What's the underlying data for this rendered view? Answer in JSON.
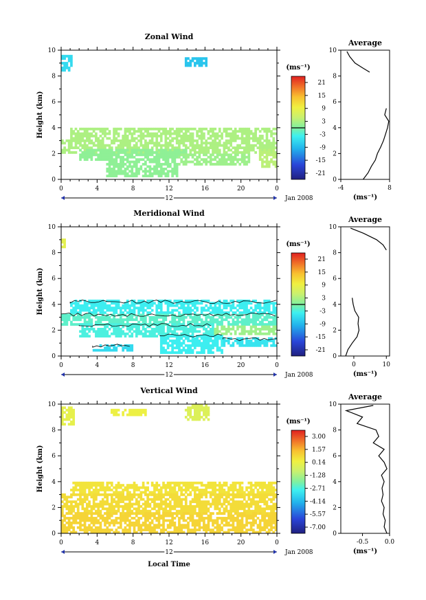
{
  "chart_data": [
    {
      "type": "heatmap",
      "title": "Zonal Wind",
      "ylabel": "Height (km)",
      "ylim": [
        0,
        10
      ],
      "y_ticks": [
        0,
        2,
        4,
        6,
        8,
        10
      ],
      "x_ticks": [
        "0",
        "4",
        "8",
        "12",
        "16",
        "20",
        "0"
      ],
      "date_marker": "12",
      "date_label": "Jan 2008",
      "colorbar": {
        "unit_label": "(ms⁻¹)",
        "ticks": [
          "21",
          "15",
          "9",
          "3",
          "-3",
          "-9",
          "-15",
          "-21"
        ],
        "range": [
          -24,
          24
        ],
        "contour_level": 0
      },
      "regions": [
        {
          "x0": 0.0,
          "x1": 1.2,
          "y0": 8.5,
          "y1": 9.5,
          "value": -6
        },
        {
          "x0": 13.8,
          "x1": 16.2,
          "y0": 8.9,
          "y1": 9.3,
          "value": -8
        },
        {
          "x0": 1.0,
          "x1": 24.0,
          "y0": 3.2,
          "y1": 3.9,
          "value": 3
        },
        {
          "x0": 0.0,
          "x1": 24.0,
          "y0": 2.1,
          "y1": 3.0,
          "value": 3
        },
        {
          "x0": 2.0,
          "x1": 14.0,
          "y0": 1.6,
          "y1": 2.2,
          "value": 1
        },
        {
          "x0": 5.0,
          "x1": 13.0,
          "y0": 0.3,
          "y1": 1.3,
          "value": 1
        },
        {
          "x0": 13.0,
          "x1": 21.0,
          "y0": 1.2,
          "y1": 1.9,
          "value": 2
        },
        {
          "x0": 22.0,
          "x1": 24.0,
          "y0": 1.0,
          "y1": 2.2,
          "value": 4
        }
      ],
      "profile": {
        "title": "Average",
        "xlabel": "(ms⁻¹)",
        "xlim": [
          -4,
          8
        ],
        "x_ticks": [
          -4,
          8
        ],
        "height": [
          0.0,
          0.5,
          1.0,
          1.5,
          2.0,
          2.5,
          3.0,
          3.5,
          4.0,
          4.5,
          5.0,
          5.5,
          8.3,
          8.6,
          9.0,
          9.5,
          9.9
        ],
        "value": [
          1.5,
          2.7,
          3.5,
          4.5,
          5.0,
          5.8,
          6.5,
          7.0,
          7.5,
          7.8,
          6.8,
          7.2,
          3.1,
          1.5,
          -0.5,
          -1.8,
          -2.5
        ]
      }
    },
    {
      "type": "heatmap",
      "title": "Meridional Wind",
      "ylabel": "Height (km)",
      "ylim": [
        0,
        10
      ],
      "y_ticks": [
        0,
        2,
        4,
        6,
        8,
        10
      ],
      "x_ticks": [
        "0",
        "4",
        "8",
        "12",
        "16",
        "20",
        "0"
      ],
      "date_marker": "12",
      "date_label": "Jan 2008",
      "colorbar": {
        "unit_label": "(ms⁻¹)",
        "ticks": [
          "21",
          "15",
          "9",
          "3",
          "-3",
          "-9",
          "-15",
          "-21"
        ],
        "range": [
          -24,
          24
        ],
        "contour_level": 0
      },
      "regions": [
        {
          "x0": 0.0,
          "x1": 0.4,
          "y0": 8.5,
          "y1": 9.4,
          "value": 8
        },
        {
          "x0": 1.0,
          "x1": 24.0,
          "y0": 3.4,
          "y1": 4.2,
          "value": -4
        },
        {
          "x0": 0.0,
          "x1": 24.0,
          "y0": 2.4,
          "y1": 3.2,
          "value": -2
        },
        {
          "x0": 2.0,
          "x1": 17.0,
          "y0": 1.6,
          "y1": 2.4,
          "value": -3
        },
        {
          "x0": 17.0,
          "x1": 24.0,
          "y0": 1.7,
          "y1": 2.3,
          "value": 2
        },
        {
          "x0": 11.0,
          "x1": 18.0,
          "y0": 0.2,
          "y1": 1.6,
          "value": -4
        },
        {
          "x0": 3.5,
          "x1": 8.0,
          "y0": 0.4,
          "y1": 0.8,
          "value": -6
        },
        {
          "x0": 18.0,
          "x1": 24.0,
          "y0": 0.8,
          "y1": 1.3,
          "value": -5
        }
      ],
      "profile": {
        "title": "Average",
        "xlabel": "(ms⁻¹)",
        "xlim": [
          -4,
          11
        ],
        "x_ticks": [
          0,
          10
        ],
        "height": [
          0.0,
          0.5,
          1.0,
          1.5,
          2.0,
          2.5,
          3.0,
          3.5,
          4.0,
          4.5,
          8.2,
          8.6,
          9.0,
          9.5,
          9.9
        ],
        "value": [
          -2.5,
          -1.8,
          -0.5,
          1.0,
          1.6,
          1.3,
          1.5,
          0.3,
          -0.2,
          -0.5,
          10.0,
          9.0,
          7.0,
          3.0,
          -1.0
        ]
      }
    },
    {
      "type": "heatmap",
      "title": "Vertical Wind",
      "ylabel": "Height (km)",
      "xlabel": "Local Time",
      "ylim": [
        0,
        10
      ],
      "y_ticks": [
        0,
        2,
        4,
        6,
        8,
        10
      ],
      "x_ticks": [
        "0",
        "4",
        "8",
        "12",
        "16",
        "20",
        "0"
      ],
      "date_marker": "12",
      "date_label": "Jan 2008",
      "colorbar": {
        "unit_label": "(ms⁻¹)",
        "ticks": [
          "3.00",
          "1.57",
          "0.14",
          "-1.28",
          "-2.71",
          "-4.14",
          "-5.57",
          "-7.00"
        ],
        "range": [
          -8,
          4
        ]
      },
      "regions": [
        {
          "x0": 0.0,
          "x1": 1.5,
          "y0": 8.5,
          "y1": 9.8,
          "value": 0.1
        },
        {
          "x0": 5.5,
          "x1": 9.5,
          "y0": 9.1,
          "y1": 9.6,
          "value": 0.3
        },
        {
          "x0": 13.8,
          "x1": 16.3,
          "y0": 8.8,
          "y1": 9.9,
          "value": -0.2
        },
        {
          "x0": 1.0,
          "x1": 24.0,
          "y0": 3.0,
          "y1": 4.0,
          "value": 0.7
        },
        {
          "x0": 0.0,
          "x1": 24.0,
          "y0": 1.5,
          "y1": 3.0,
          "value": 0.9
        },
        {
          "x0": 0.0,
          "x1": 24.0,
          "y0": 0.1,
          "y1": 1.5,
          "value": 1.1
        }
      ],
      "profile": {
        "title": "Average",
        "xlabel": "(ms⁻¹)",
        "xlim": [
          -0.9,
          0.0
        ],
        "x_ticks": [
          -0.5,
          0.0
        ],
        "height": [
          0.0,
          0.5,
          1.0,
          1.5,
          2.0,
          2.5,
          3.0,
          3.5,
          4.0,
          4.5,
          5.0,
          5.5,
          6.0,
          6.5,
          7.0,
          7.5,
          8.0,
          8.5,
          9.0,
          9.5,
          9.9
        ],
        "value": [
          -0.05,
          -0.1,
          -0.08,
          -0.12,
          -0.1,
          -0.15,
          -0.12,
          -0.14,
          -0.1,
          -0.15,
          -0.05,
          -0.1,
          -0.2,
          -0.1,
          -0.3,
          -0.2,
          -0.25,
          -0.6,
          -0.5,
          -0.8,
          -0.3
        ]
      }
    }
  ]
}
